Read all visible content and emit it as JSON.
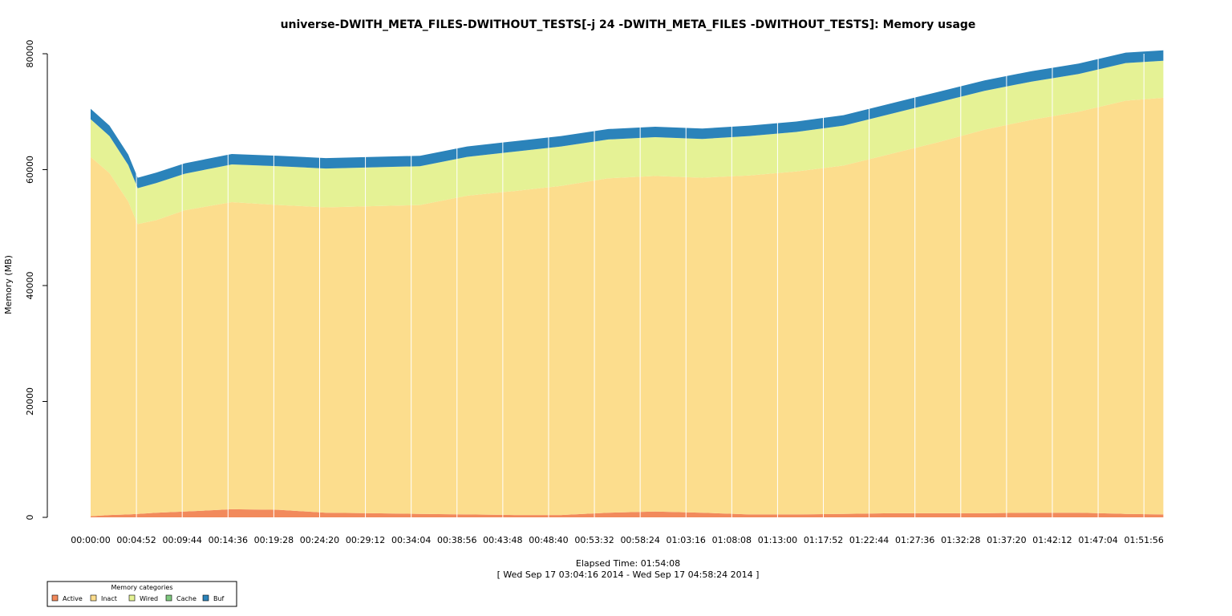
{
  "chart_data": {
    "type": "area",
    "stacked": true,
    "title": "universe-DWITH_META_FILES-DWITHOUT_TESTS[-j 24 -DWITH_META_FILES -DWITHOUT_TESTS]: Memory usage",
    "ylabel": "Memory (MB)",
    "xlabel": "Elapsed Time: 01:54:08",
    "subtitle": "[ Wed Sep 17 03:04:16 2014 - Wed Sep 17 04:58:24 2014 ]",
    "x_unit": "elapsed time (h:mm)",
    "xlim": [
      "00:00:00",
      "01:54:08"
    ],
    "ylim": [
      0,
      80000
    ],
    "yticks": [
      "0",
      "20000",
      "40000",
      "60000",
      "80000"
    ],
    "xticks": [
      "00:00:00",
      "00:04:52",
      "00:09:44",
      "00:14:36",
      "00:19:28",
      "00:24:20",
      "00:29:12",
      "00:34:04",
      "00:38:56",
      "00:43:48",
      "00:48:40",
      "00:53:32",
      "00:58:24",
      "01:03:16",
      "01:08:08",
      "01:13:00",
      "01:17:52",
      "01:22:44",
      "01:27:36",
      "01:32:28",
      "01:37:20",
      "01:42:12",
      "01:47:04",
      "01:51:56"
    ],
    "x": [
      "0:00",
      "0:02",
      "0:04",
      "0:05",
      "0:07",
      "0:10",
      "0:15",
      "0:20",
      "0:25",
      "0:30",
      "0:35",
      "0:40",
      "0:45",
      "0:50",
      "0:55",
      "1:00",
      "1:05",
      "1:10",
      "1:15",
      "1:20",
      "1:25",
      "1:30",
      "1:35",
      "1:40",
      "1:45",
      "1:50",
      "1:54"
    ],
    "series": [
      {
        "name": "Active",
        "color": "#F28A5C",
        "values": [
          200,
          400,
          500,
          600,
          800,
          1000,
          1400,
          1300,
          800,
          700,
          600,
          500,
          400,
          400,
          800,
          1000,
          800,
          500,
          500,
          600,
          700,
          700,
          700,
          800,
          800,
          600,
          500
        ]
      },
      {
        "name": "Inact",
        "color": "#FCDD8D",
        "values": [
          62000,
          59000,
          54000,
          50000,
          50500,
          52000,
          53000,
          52600,
          52700,
          53000,
          53300,
          55000,
          55900,
          56800,
          57700,
          57900,
          57800,
          58500,
          59200,
          60100,
          62000,
          64000,
          66200,
          67800,
          69200,
          71300,
          71900
        ]
      },
      {
        "name": "Wired",
        "color": "#E5F295",
        "values": [
          6500,
          6400,
          6300,
          6200,
          6400,
          6300,
          6500,
          6700,
          6700,
          6700,
          6700,
          6700,
          6800,
          6800,
          6700,
          6700,
          6700,
          6800,
          6800,
          6900,
          6900,
          6900,
          6700,
          6600,
          6500,
          6500,
          6400
        ]
      },
      {
        "name": "Cache",
        "color": "#7FC97F",
        "values": [
          0,
          0,
          0,
          0,
          0,
          0,
          0,
          0,
          0,
          0,
          0,
          0,
          0,
          0,
          0,
          0,
          0,
          0,
          0,
          0,
          0,
          0,
          0,
          0,
          0,
          0,
          0
        ]
      },
      {
        "name": "Buf",
        "color": "#2B83BA",
        "values": [
          1800,
          1800,
          1800,
          1800,
          1800,
          1800,
          1800,
          1800,
          1800,
          1800,
          1800,
          1800,
          1800,
          1800,
          1800,
          1800,
          1800,
          1800,
          1800,
          1800,
          1800,
          1800,
          1800,
          1800,
          1800,
          1800,
          1800
        ]
      }
    ],
    "legend": {
      "title": "Memory categories",
      "placement": "bottom-left",
      "entries": [
        "Active",
        "Inact",
        "Wired",
        "Cache",
        "Buf"
      ]
    },
    "vertical_grid": true,
    "grid_color": "#ffffff"
  }
}
